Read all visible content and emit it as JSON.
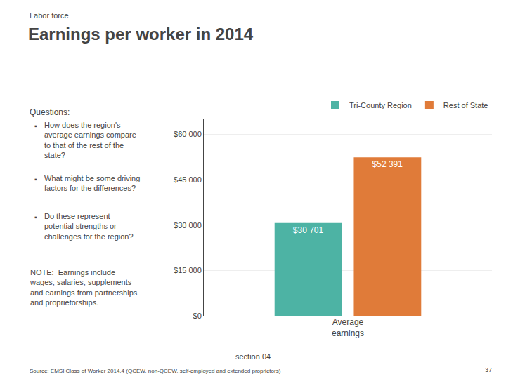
{
  "chart_data": {
    "type": "bar",
    "title": "Earnings per worker in 2014",
    "subtitle": "Labor force",
    "categories": [
      "Average\nearnings"
    ],
    "series": [
      {
        "name": "Tri-County Region",
        "color": "#4db3a4",
        "values": [
          30701
        ],
        "value_labels": [
          "$30 701"
        ]
      },
      {
        "name": "Rest of State",
        "color": "#e07b39",
        "values": [
          52391
        ],
        "value_labels": [
          "$52 391"
        ]
      }
    ],
    "ylim": [
      0,
      65000
    ],
    "yticks": [
      {
        "value": 0,
        "label": "$0"
      },
      {
        "value": 15000,
        "label": "$15 000"
      },
      {
        "value": 30000,
        "label": "$30 000"
      },
      {
        "value": 45000,
        "label": "$45 000"
      },
      {
        "value": 60000,
        "label": "$60 000"
      }
    ],
    "grid": true,
    "legend": "upper right",
    "data_labels": true,
    "annotations": [
      "Questions:",
      "▪",
      "How does the region's\naverage earnings compare\nto that of the rest of the\nstate?",
      "▪",
      "What might be some driving\nfactors for the differences?",
      "▪",
      "Do these represent\npotential strengths or\nchallenges for the region?",
      "NOTE:  Earnings include\nwages, salaries, supplements\nand earnings from partnerships\nand proprietorships.",
      "section 04",
      "Source: EMSI Class of Worker 2014.4 (QCEW, non-QCEW, self-employed and extended proprietors)",
      "37"
    ]
  }
}
